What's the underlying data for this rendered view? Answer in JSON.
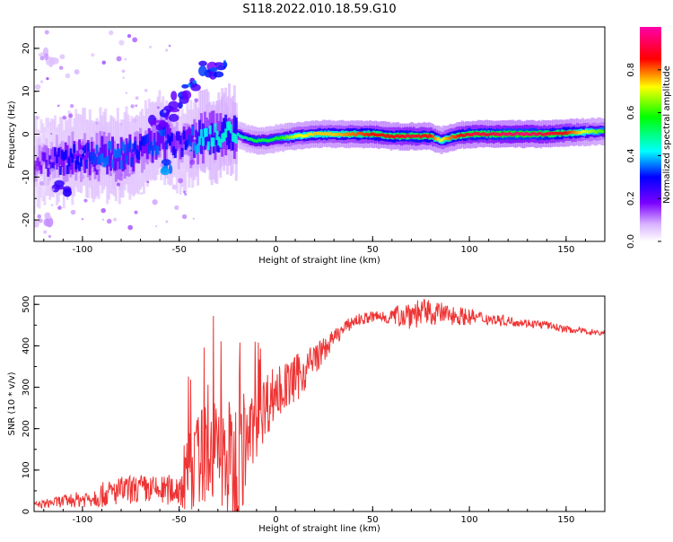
{
  "title": "S118.2022.010.18.59.G10",
  "chart_data": [
    {
      "type": "heatmap",
      "xlabel": "Height of straight line (km)",
      "ylabel": "Frequency (Hz)",
      "xlim": [
        -125,
        170
      ],
      "ylim": [
        -25,
        25
      ],
      "x_ticks": [
        "-100",
        "-50",
        "0",
        "50",
        "100",
        "150"
      ],
      "y_ticks": [
        "-20",
        "-10",
        "0",
        "10",
        "20"
      ],
      "colorbar": {
        "label": "Normalized spectral amplitude",
        "range": [
          0,
          1
        ],
        "ticks": [
          "0.0",
          "0.2",
          "0.4",
          "0.6",
          "0.8"
        ],
        "colors": [
          "#ffffff",
          "#7a00ff",
          "#0000ff",
          "#00ffff",
          "#00ff00",
          "#ffff00",
          "#ff0000",
          "#ff00aa"
        ]
      },
      "ridge": {
        "x": [
          -125,
          -110,
          -100,
          -90,
          -80,
          -70,
          -60,
          -50,
          -40,
          -30,
          -25,
          -20,
          -15,
          -10,
          -5,
          0,
          10,
          20,
          30,
          40,
          50,
          60,
          70,
          80,
          85,
          90,
          95,
          100,
          110,
          120,
          130,
          140,
          150,
          160,
          170
        ],
        "y": [
          -7,
          -6,
          -5,
          -5,
          -5,
          -4,
          -1,
          -3,
          -1,
          0,
          1,
          0,
          -1,
          -1.5,
          -1.5,
          -1,
          -0.5,
          0,
          0,
          0,
          0,
          -0.5,
          -0.5,
          -0.5,
          -1.5,
          -0.8,
          -0.3,
          0,
          0,
          0,
          0,
          0,
          0.3,
          0.5,
          0.7
        ],
        "amplitude": [
          0.15,
          0.3,
          0.3,
          0.35,
          0.35,
          0.3,
          0.35,
          0.25,
          0.4,
          0.45,
          0.45,
          0.45,
          0.5,
          0.55,
          0.55,
          0.55,
          0.7,
          0.75,
          0.75,
          0.8,
          0.85,
          0.85,
          0.9,
          0.85,
          0.7,
          0.8,
          0.85,
          0.9,
          0.9,
          0.95,
          0.95,
          0.9,
          0.85,
          0.7,
          0.6
        ]
      },
      "blobs": [
        {
          "x": -50,
          "y": 8,
          "amp": 0.3
        },
        {
          "x": -43,
          "y": 11,
          "amp": 0.35
        },
        {
          "x": -35,
          "y": 15,
          "amp": 0.3
        },
        {
          "x": -29,
          "y": 15,
          "amp": 0.35
        },
        {
          "x": -55,
          "y": 5,
          "amp": 0.3
        },
        {
          "x": -60,
          "y": 3,
          "amp": 0.25
        },
        {
          "x": -57,
          "y": -8,
          "amp": 0.35
        },
        {
          "x": -110,
          "y": -13,
          "amp": 0.25
        },
        {
          "x": -118,
          "y": 18,
          "amp": 0.1
        },
        {
          "x": -120,
          "y": -20,
          "amp": 0.1
        }
      ]
    },
    {
      "type": "line",
      "xlabel": "Height of straight line (km)",
      "ylabel": "SNR (10 * v/v)",
      "xlim": [
        -125,
        170
      ],
      "ylim": [
        0,
        520
      ],
      "x_ticks": [
        "-100",
        "-50",
        "0",
        "50",
        "100",
        "150"
      ],
      "y_ticks": [
        "0",
        "100",
        "200",
        "300",
        "400",
        "500"
      ],
      "color": "#ee3333",
      "envelope": {
        "x": [
          -125,
          -110,
          -100,
          -90,
          -80,
          -70,
          -60,
          -50,
          -45,
          -40,
          -35,
          -30,
          -25,
          -20,
          -15,
          -10,
          -5,
          0,
          5,
          10,
          15,
          20,
          25,
          30,
          40,
          50,
          60,
          70,
          80,
          90,
          100,
          110,
          120,
          130,
          140,
          150,
          160,
          170
        ],
        "mean": [
          15,
          25,
          30,
          40,
          50,
          55,
          50,
          55,
          90,
          130,
          150,
          140,
          120,
          90,
          170,
          220,
          260,
          290,
          300,
          320,
          340,
          370,
          390,
          420,
          460,
          470,
          470,
          480,
          480,
          475,
          470,
          465,
          460,
          455,
          450,
          440,
          435,
          430
        ],
        "spread": [
          8,
          15,
          20,
          30,
          35,
          35,
          35,
          40,
          100,
          110,
          130,
          130,
          150,
          200,
          90,
          90,
          80,
          70,
          60,
          60,
          50,
          40,
          30,
          20,
          15,
          15,
          20,
          40,
          30,
          25,
          20,
          15,
          12,
          10,
          10,
          8,
          8,
          8
        ]
      }
    }
  ]
}
